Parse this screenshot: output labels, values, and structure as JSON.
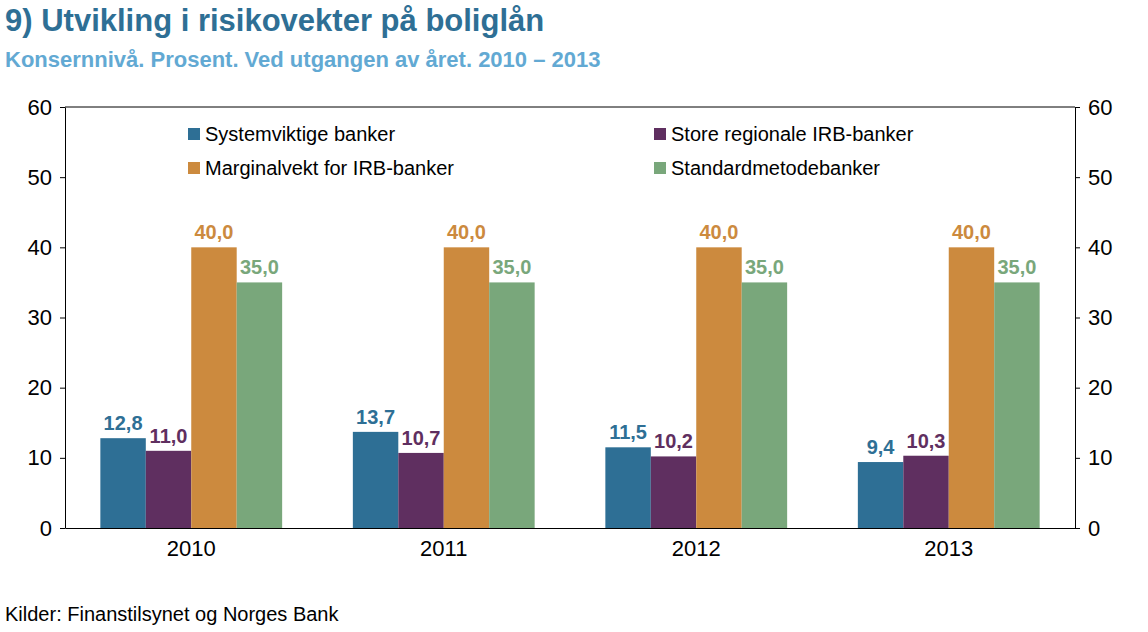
{
  "chart_data": {
    "type": "bar",
    "title": "9) Utvikling i risikovekter på boliglån",
    "subtitle": "Konsernnivå. Prosent. Ved utgangen av året. 2010 – 2013",
    "source": "Kilder: Finanstilsynet og Norges Bank",
    "categories": [
      "2010",
      "2011",
      "2012",
      "2013"
    ],
    "series": [
      {
        "name": "Systemviktige banker",
        "color": "#2e6f95",
        "values": [
          12.8,
          13.7,
          11.5,
          9.4
        ],
        "value_labels": [
          "12,8",
          "13,7",
          "11,5",
          "9,4"
        ]
      },
      {
        "name": "Store regionale IRB-banker",
        "color": "#5f2f60",
        "values": [
          11.0,
          10.7,
          10.2,
          10.3
        ],
        "value_labels": [
          "11,0",
          "10,7",
          "10,2",
          "10,3"
        ]
      },
      {
        "name": "Marginalvekt for IRB-banker",
        "color": "#cc8a3e",
        "values": [
          40.0,
          40.0,
          40.0,
          40.0
        ],
        "value_labels": [
          "40,0",
          "40,0",
          "40,0",
          "40,0"
        ]
      },
      {
        "name": "Standardmetodebanker",
        "color": "#79a77b",
        "values": [
          35.0,
          35.0,
          35.0,
          35.0
        ],
        "value_labels": [
          "35,0",
          "35,0",
          "35,0",
          "35,0"
        ]
      }
    ],
    "ylim": [
      0,
      60
    ],
    "yticks": [
      0,
      10,
      20,
      30,
      40,
      50,
      60
    ],
    "grid": false,
    "legend": "top",
    "data_labels": true
  }
}
